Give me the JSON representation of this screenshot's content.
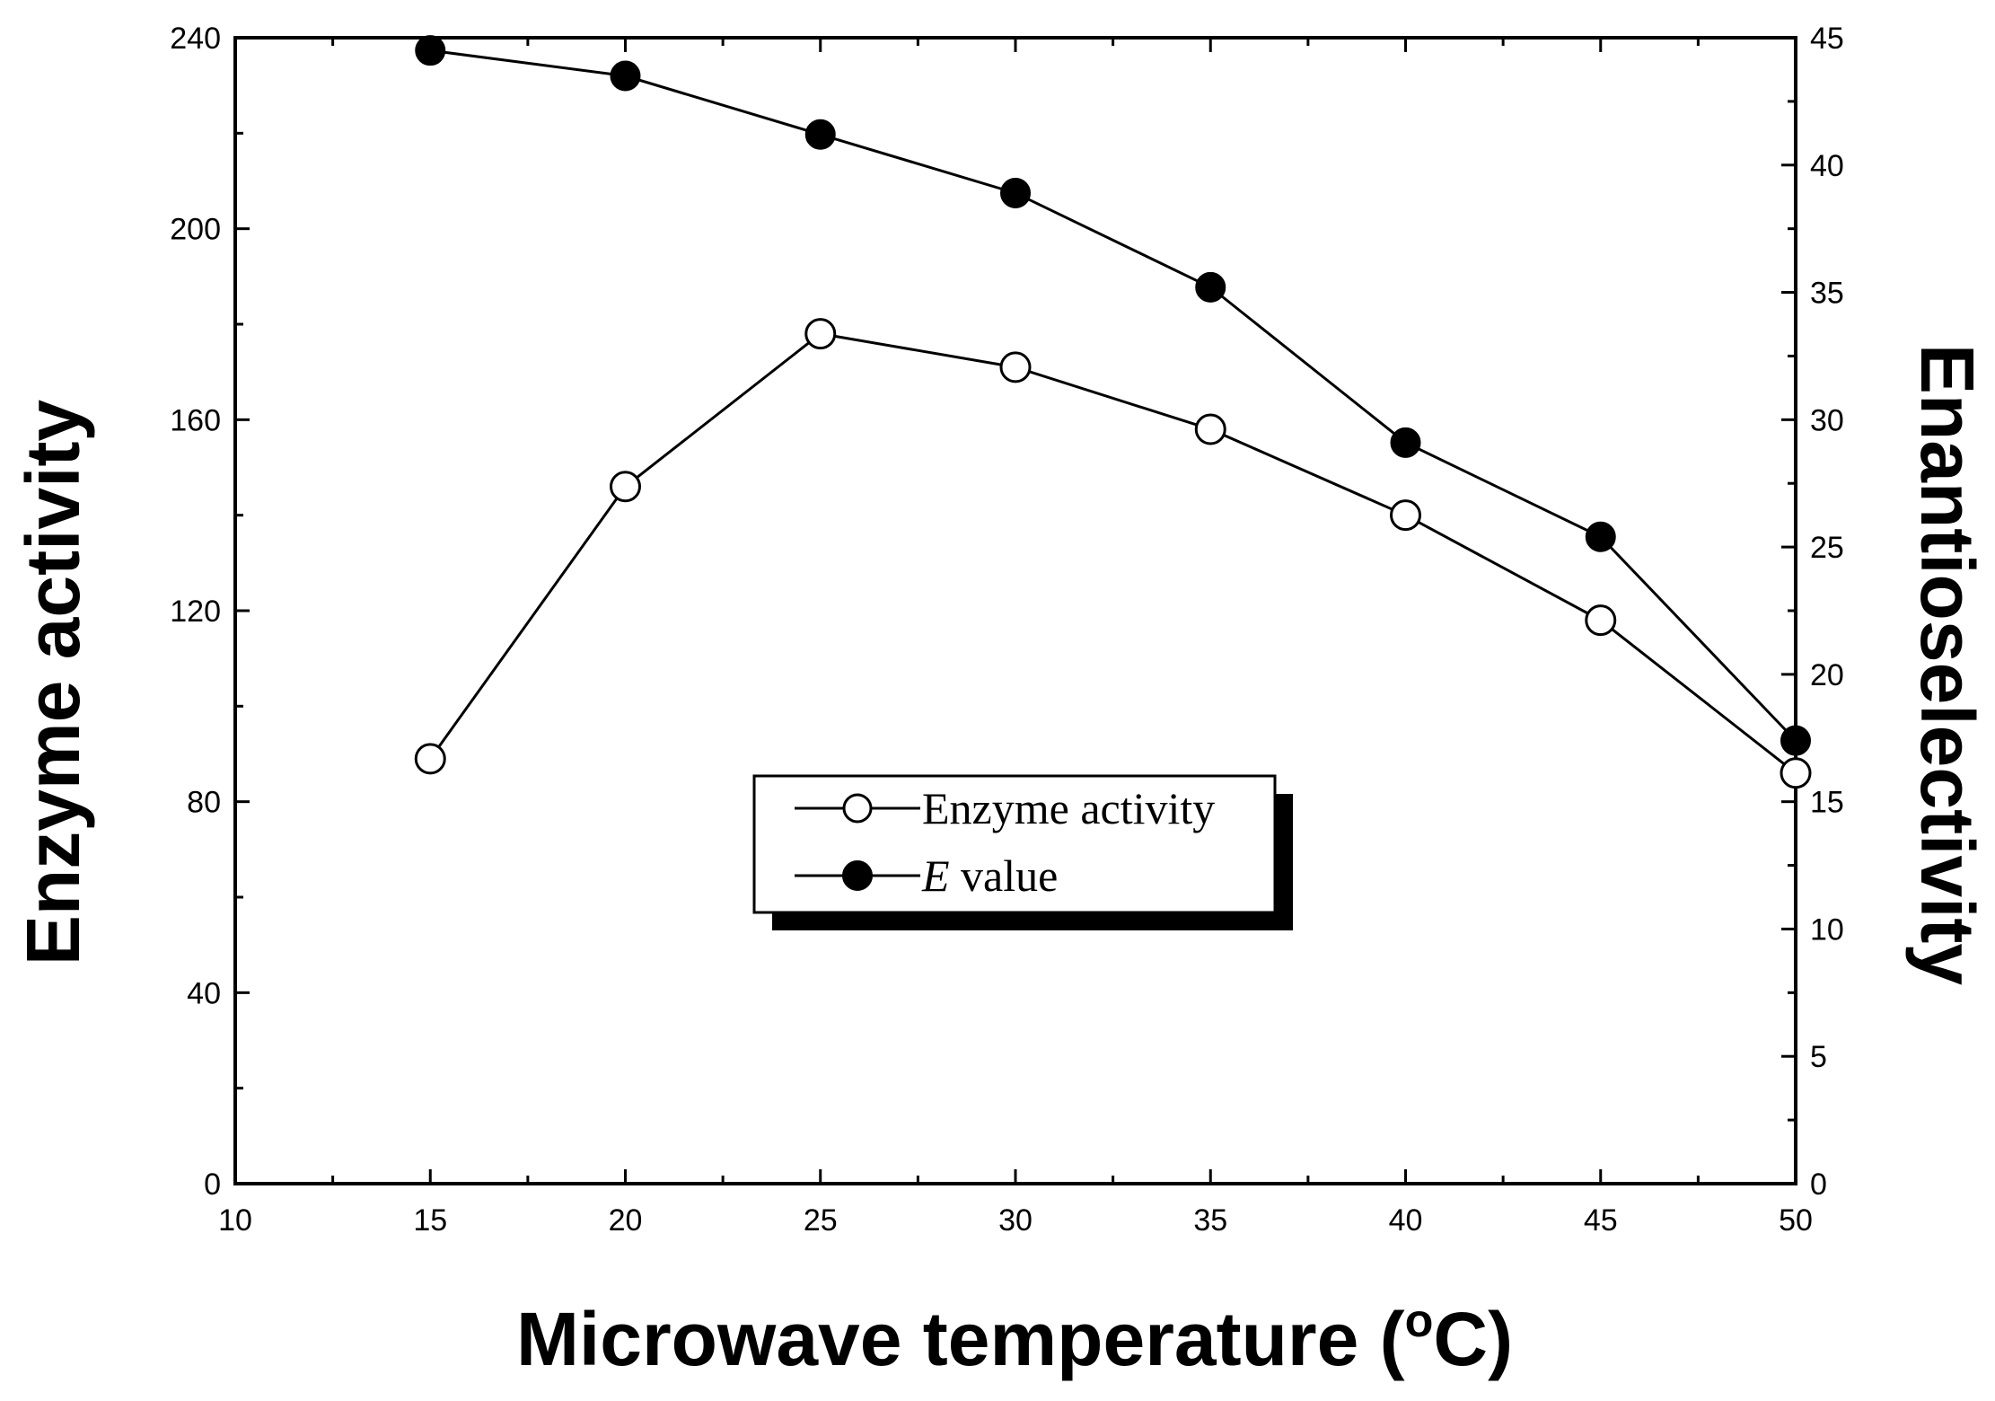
{
  "chart_data": {
    "type": "line",
    "title": "",
    "xlabel": "Microwave temperature",
    "xlabel_unit_prefix": "(",
    "xlabel_unit_sup": "o",
    "xlabel_unit_suffix": "C)",
    "ylabel_left": "Enzyme activity",
    "ylabel_right": "Enantioselectivity",
    "xlim": [
      10,
      50
    ],
    "ylim_left": [
      0,
      240
    ],
    "ylim_right": [
      0,
      45
    ],
    "x_ticks": [
      "10",
      "15",
      "20",
      "25",
      "30",
      "35",
      "40",
      "45",
      "50"
    ],
    "y_left_ticks": [
      "0",
      "40",
      "80",
      "120",
      "160",
      "200",
      "240"
    ],
    "y_right_ticks": [
      "0",
      "5",
      "10",
      "15",
      "20",
      "25",
      "30",
      "35",
      "40",
      "45"
    ],
    "grid": false,
    "legend_position": "center",
    "series": [
      {
        "name": "Enzyme activity",
        "axis": "left",
        "marker": "open-circle",
        "x": [
          15,
          20,
          25,
          30,
          35,
          40,
          45,
          50
        ],
        "values": [
          89,
          146,
          178,
          171,
          158,
          140,
          118,
          86
        ]
      },
      {
        "name": "E value",
        "name_italic": "E",
        "name_rest": " value",
        "axis": "right",
        "marker": "filled-circle",
        "x": [
          15,
          20,
          25,
          30,
          35,
          40,
          45,
          50
        ],
        "values": [
          44.5,
          43.5,
          41.2,
          38.9,
          35.2,
          29.1,
          25.4,
          17.4
        ]
      }
    ]
  }
}
